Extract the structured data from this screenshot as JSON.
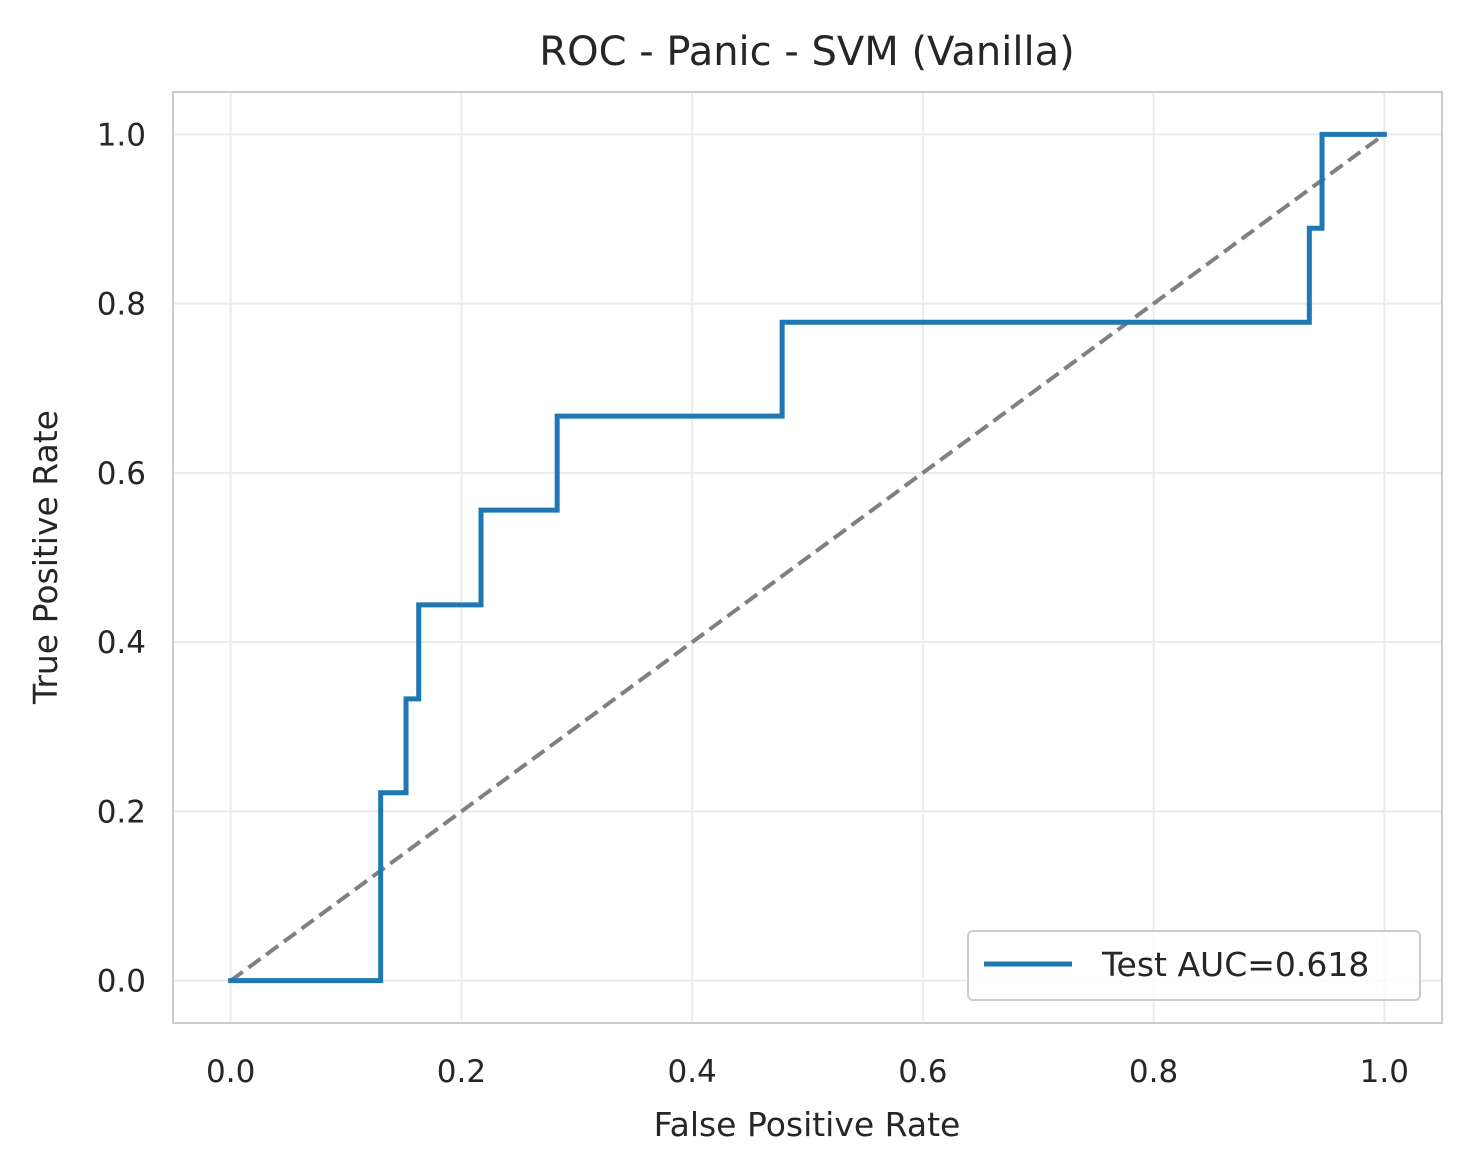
{
  "chart_data": {
    "type": "line",
    "title": "ROC - Panic - SVM (Vanilla)",
    "xlabel": "False Positive Rate",
    "ylabel": "True Positive Rate",
    "xlim": [
      -0.05,
      1.05
    ],
    "ylim": [
      -0.05,
      1.05
    ],
    "xticks": [
      0.0,
      0.2,
      0.4,
      0.6,
      0.8,
      1.0
    ],
    "yticks": [
      0.0,
      0.2,
      0.4,
      0.6,
      0.8,
      1.0
    ],
    "xtick_labels": [
      "0.0",
      "0.2",
      "0.4",
      "0.6",
      "0.8",
      "1.0"
    ],
    "ytick_labels": [
      "0.0",
      "0.2",
      "0.4",
      "0.6",
      "0.8",
      "1.0"
    ],
    "grid": true,
    "legend_position": "lower-right",
    "series": [
      {
        "name": "Test AUC=0.618",
        "color": "#1f77b4",
        "style": "solid",
        "x": [
          0.0,
          0.13,
          0.13,
          0.152,
          0.152,
          0.163,
          0.163,
          0.217,
          0.217,
          0.283,
          0.283,
          0.478,
          0.478,
          0.935,
          0.935,
          0.946,
          0.946,
          1.0
        ],
        "y": [
          0.0,
          0.0,
          0.222,
          0.222,
          0.333,
          0.333,
          0.444,
          0.444,
          0.556,
          0.556,
          0.667,
          0.667,
          0.778,
          0.778,
          0.889,
          0.889,
          1.0,
          1.0
        ]
      }
    ],
    "reference_line": {
      "color": "#808080",
      "style": "dashed",
      "x": [
        0.0,
        1.0
      ],
      "y": [
        0.0,
        1.0
      ]
    }
  }
}
